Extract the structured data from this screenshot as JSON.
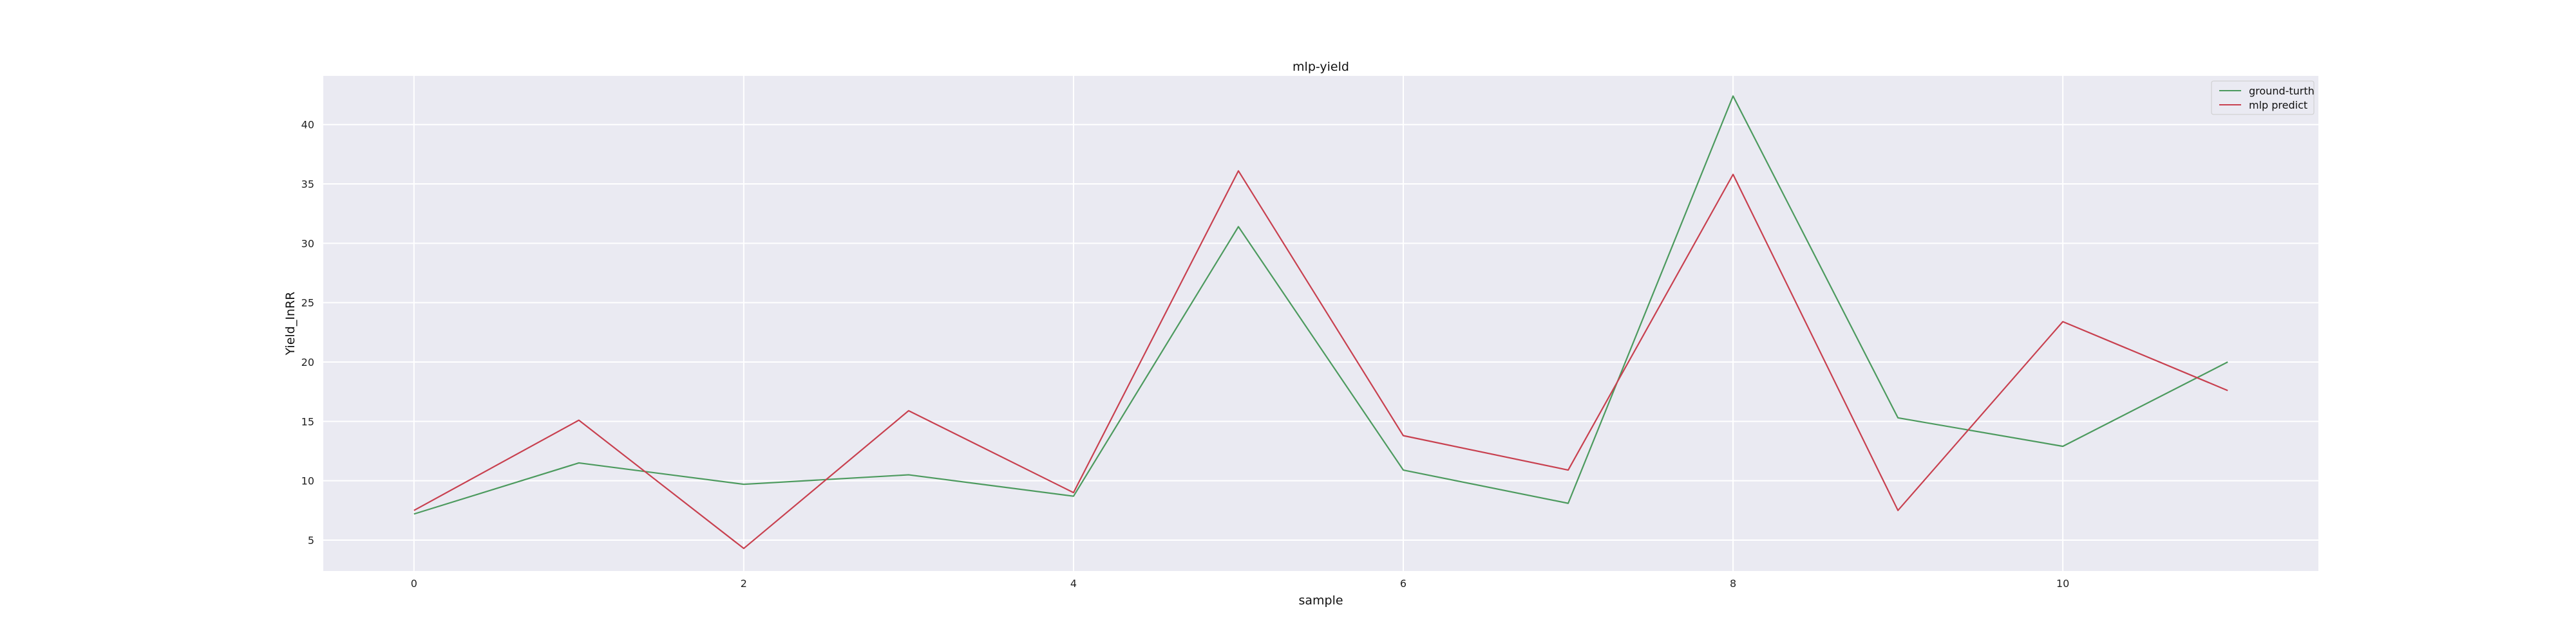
{
  "chart_data": {
    "type": "line",
    "title": "mlp-yield",
    "xlabel": "sample",
    "ylabel": "Yield_InRR",
    "x": [
      0,
      1,
      2,
      3,
      4,
      5,
      6,
      7,
      8,
      9,
      10,
      11
    ],
    "xticks": [
      0,
      2,
      4,
      6,
      8,
      10
    ],
    "yticks": [
      5,
      10,
      15,
      20,
      25,
      30,
      35,
      40
    ],
    "xlim": [
      -0.55,
      11.55
    ],
    "ylim": [
      2.4,
      44.1
    ],
    "grid": true,
    "legend_position": "top-right",
    "series": [
      {
        "name": "ground-turth",
        "color": "#4c9a5e",
        "values": [
          7.2,
          11.5,
          9.7,
          10.5,
          8.7,
          31.4,
          10.9,
          8.1,
          42.4,
          15.3,
          12.9,
          20.0
        ]
      },
      {
        "name": "mlp predict",
        "color": "#c8404f",
        "values": [
          7.5,
          15.1,
          4.3,
          15.9,
          9.0,
          36.1,
          13.8,
          10.9,
          35.8,
          7.5,
          23.4,
          17.6
        ]
      }
    ]
  }
}
